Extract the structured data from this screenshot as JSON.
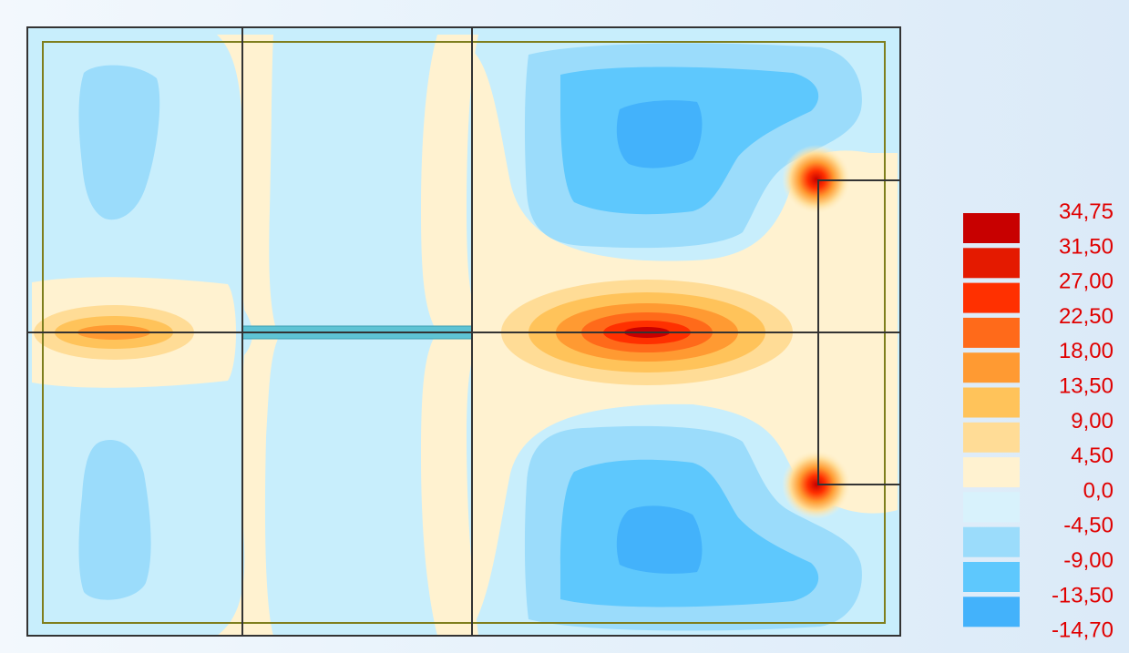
{
  "legend": {
    "labels": [
      "34,75",
      "31,50",
      "27,00",
      "22,50",
      "18,00",
      "13,50",
      "9,00",
      "4,50",
      "0,0",
      "-4,50",
      "-9,00",
      "-13,50",
      "-14,70"
    ],
    "colors": [
      "#c80000",
      "#e41a00",
      "#ff3000",
      "#ff6a1a",
      "#ff9a32",
      "#ffc35a",
      "#ffdc96",
      "#fff2d0",
      "#d8f2fc",
      "#9bdcfb",
      "#5ec8fd",
      "#43b2fb"
    ]
  },
  "plot_colors": {
    "background": "#c8eefc",
    "frame": "#333333",
    "inner_border": "#7f7f1e",
    "beam": "#5ec3d4"
  }
}
